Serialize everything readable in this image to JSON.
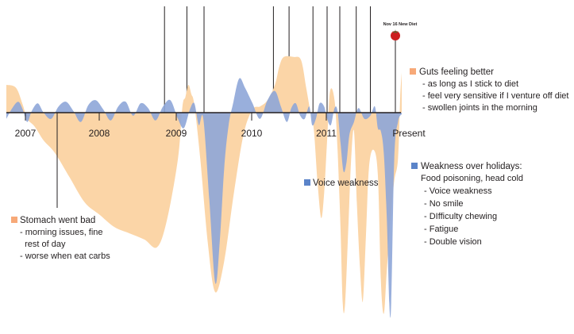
{
  "chart_data": {
    "type": "area",
    "title": "",
    "xlabel": "",
    "ylabel": "",
    "x_ticks": [
      "2007",
      "2008",
      "2009",
      "2010",
      "2011",
      "Present"
    ],
    "x_range": [
      2006.7,
      2012.0
    ],
    "series": [
      {
        "color": "#fbd5a7",
        "x": [
          2006.7,
          2006.83,
          2006.92,
          2006.98,
          2007.08,
          2007.2,
          2007.35,
          2007.55,
          2007.75,
          2007.95,
          2008.15,
          2008.35,
          2008.55,
          2008.72,
          2008.85,
          2009.0,
          2009.06,
          2009.1,
          2009.14,
          2009.18,
          2009.22,
          2009.3,
          2009.4,
          2009.5,
          2009.62,
          2009.75,
          2009.88,
          2010.0,
          2010.1,
          2010.2,
          2010.3,
          2010.36,
          2010.42,
          2010.55,
          2010.65,
          2010.72,
          2010.77,
          2010.82,
          2010.87,
          2010.92,
          2010.96,
          2011.0,
          2011.04,
          2011.1,
          2011.14,
          2011.18,
          2011.21,
          2011.24,
          2011.28,
          2011.32,
          2011.36,
          2011.4,
          2011.44,
          2011.48,
          2011.52,
          2011.56,
          2011.62,
          2011.68,
          2011.72,
          2011.76,
          2011.8,
          2011.85,
          2011.9,
          2011.95,
          2011.98,
          2012.0
        ],
        "y": [
          0.9,
          0.8,
          0.25,
          -0.2,
          -0.45,
          -0.9,
          -1.3,
          -2.1,
          -2.9,
          -3.3,
          -3.7,
          -3.9,
          -4.1,
          -4.35,
          -3.5,
          -1.5,
          0.2,
          0.5,
          0.9,
          0.6,
          0.25,
          -1.5,
          -4.2,
          -5.8,
          -4.8,
          -2.6,
          -0.7,
          0.1,
          0.2,
          0.4,
          0.9,
          1.5,
          1.8,
          1.8,
          1.7,
          0.8,
          0.1,
          -0.5,
          -2.2,
          -3.4,
          -2.6,
          -0.9,
          0.7,
          0.4,
          -1.2,
          -3.8,
          -6.2,
          -6.2,
          -4.0,
          -1.6,
          -0.6,
          -3.0,
          -5.0,
          -6.1,
          -4.0,
          -1.8,
          -1.2,
          -2.0,
          -5.4,
          -6.5,
          -5.1,
          -3.4,
          -2.2,
          -1.5,
          0.5,
          1.3
        ]
      },
      {
        "color": "#8ea6d8",
        "x": [
          2006.7,
          2006.78,
          2006.86,
          2006.92,
          2006.98,
          2007.04,
          2007.12,
          2007.2,
          2007.3,
          2007.4,
          2007.5,
          2007.6,
          2007.7,
          2007.8,
          2007.9,
          2008.0,
          2008.1,
          2008.2,
          2008.3,
          2008.4,
          2008.5,
          2008.6,
          2008.7,
          2008.8,
          2008.9,
          2009.0,
          2009.08,
          2009.16,
          2009.22,
          2009.28,
          2009.34,
          2009.42,
          2009.5,
          2009.56,
          2009.62,
          2009.68,
          2009.74,
          2009.82,
          2009.9,
          2010.0,
          2010.1,
          2010.2,
          2010.3,
          2010.38,
          2010.46,
          2010.52,
          2010.58,
          2010.64,
          2010.7,
          2010.76,
          2010.8,
          2010.85,
          2010.9,
          2010.96,
          2011.0,
          2011.05,
          2011.1,
          2011.14,
          2011.18,
          2011.22,
          2011.26,
          2011.3,
          2011.36,
          2011.42,
          2011.5,
          2011.58,
          2011.64,
          2011.68,
          2011.72,
          2011.76,
          2011.8,
          2011.85,
          2011.9,
          2011.95,
          2012.0
        ],
        "y": [
          -0.2,
          0.15,
          0.35,
          0.1,
          -0.3,
          0.05,
          0.3,
          0.0,
          -0.2,
          0.2,
          0.35,
          0.05,
          -0.3,
          0.25,
          0.4,
          0.1,
          -0.25,
          0.2,
          0.35,
          -0.1,
          0.3,
          0.15,
          -0.25,
          0.2,
          0.4,
          -0.2,
          -0.5,
          0.1,
          0.3,
          -0.4,
          -0.2,
          -2.8,
          -5.5,
          -4.2,
          -1.8,
          -0.4,
          0.3,
          1.1,
          0.8,
          0.3,
          -0.2,
          0.4,
          0.7,
          0.2,
          -0.3,
          0.15,
          0.3,
          -0.1,
          -0.2,
          0.2,
          -0.4,
          -0.2,
          0.3,
          0.2,
          -0.2,
          -0.4,
          0.15,
          0.05,
          -1.0,
          -1.9,
          -1.6,
          -0.7,
          -0.3,
          0.15,
          -0.2,
          -0.1,
          0.2,
          -0.5,
          -0.6,
          -1.3,
          -3.4,
          -6.6,
          -1.5,
          -0.3,
          -0.05
        ]
      }
    ],
    "event_lines_x": [
      2008.82,
      2009.12,
      2009.35,
      2010.28,
      2010.49,
      2010.81,
      2011.0,
      2011.17,
      2011.39,
      2011.58
    ]
  },
  "marker": {
    "label": "Nov 16 New Diet",
    "color": "#cc1f1f",
    "leaf": "#2f7f3a"
  },
  "annotations": {
    "guts": {
      "swatch": "#f7a978",
      "title": "Guts feeling better",
      "lines": [
        "- as long as I stick to diet",
        "- feel very sensitive if I venture off diet",
        "- swollen joints in the morning"
      ]
    },
    "weakness": {
      "swatch": "#5b84c9",
      "title": "Weakness over holidays:",
      "lines": [
        "Food poisoning, head cold",
        "- Voice weakness",
        "- No smile",
        "- DIfficulty chewing",
        "- Fatigue",
        "- Double vision"
      ]
    },
    "voice": {
      "swatch": "#5b84c9",
      "title": "Voice weakness"
    },
    "stomach": {
      "swatch": "#f7a978",
      "title": "Stomach went bad",
      "lines": [
        "- morning issues, fine",
        "  rest of day",
        "- worse when eat carbs"
      ]
    }
  }
}
